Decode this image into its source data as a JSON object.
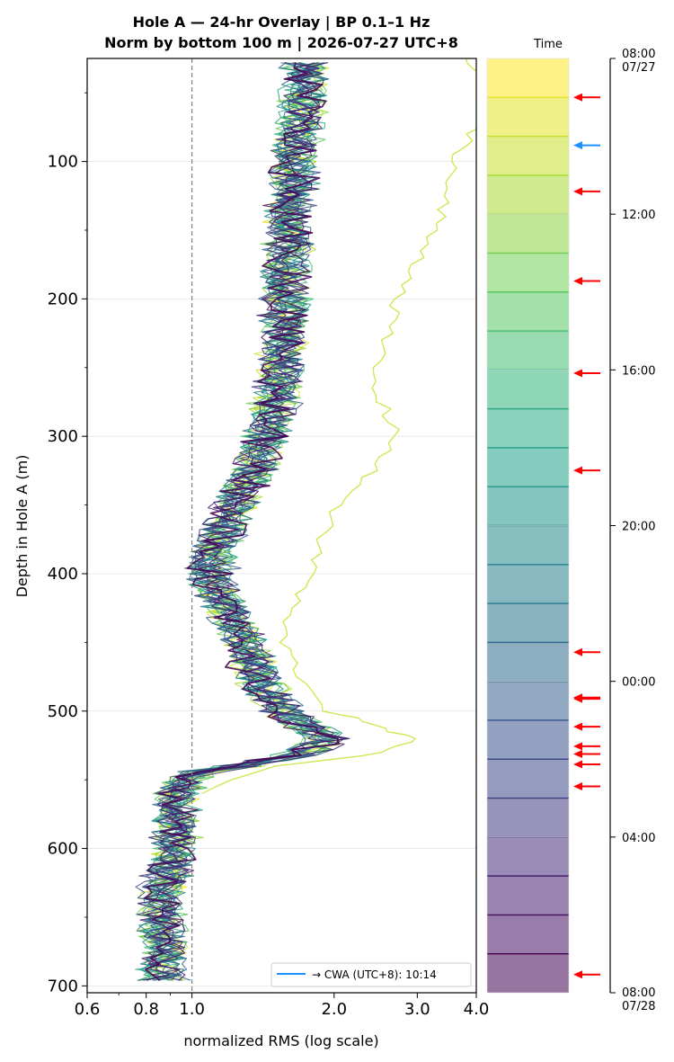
{
  "chart_data": {
    "type": "line",
    "title": "Hole A — 24-hr Overlay  |  BP 0.1–1 Hz",
    "subtitle": "Norm by bottom 100 m  |  2026-07-27 UTC+8",
    "xlabel": "normalized RMS  (log scale)",
    "ylabel": "Depth in Hole A (m)",
    "xscale": "log",
    "xlim": [
      0.6,
      4.0
    ],
    "ylim": [
      705,
      25
    ],
    "xticks": [
      0.6,
      0.8,
      1.0,
      2.0,
      3.0,
      4.0
    ],
    "xtick_labels": [
      "0.6",
      "0.8",
      "1.0",
      "2.0",
      "3.0",
      "4.0"
    ],
    "yticks": [
      100,
      200,
      300,
      400,
      500,
      600,
      700
    ],
    "ytick_labels": [
      "100",
      "200",
      "300",
      "400",
      "500",
      "600",
      "700"
    ],
    "reference_line_x": 1.0,
    "grid": "horizontal",
    "legend": {
      "position": "bottom-right",
      "entries": [
        {
          "label": "→ CWA (UTC+8): 10:14",
          "color": "#1e90ff"
        }
      ]
    },
    "colormap": "viridis",
    "baseline_profile": {
      "depth": [
        25,
        50,
        100,
        150,
        200,
        250,
        300,
        340,
        380,
        400,
        420,
        450,
        480,
        500,
        510,
        520,
        530,
        545,
        560,
        600,
        640,
        680,
        695
      ],
      "value": [
        1.75,
        1.72,
        1.65,
        1.6,
        1.58,
        1.55,
        1.45,
        1.28,
        1.12,
        1.1,
        1.15,
        1.3,
        1.38,
        1.55,
        1.7,
        1.95,
        1.75,
        1.0,
        0.93,
        0.92,
        0.85,
        0.88,
        0.86
      ]
    },
    "highlighted_series": {
      "name": "",
      "color": "#cce64a",
      "depth": [
        25,
        40,
        60,
        80,
        100,
        120,
        140,
        160,
        180,
        200,
        220,
        240,
        260,
        280,
        300,
        320,
        340,
        360,
        380,
        400,
        420,
        440,
        460,
        480,
        500,
        510,
        520,
        530,
        540,
        560
      ],
      "value": [
        3.8,
        4.05,
        4.2,
        3.95,
        3.6,
        3.45,
        3.35,
        3.15,
        2.95,
        2.75,
        2.6,
        2.5,
        2.4,
        2.55,
        2.75,
        2.45,
        2.2,
        1.95,
        1.85,
        1.8,
        1.65,
        1.55,
        1.6,
        1.75,
        1.95,
        2.4,
        2.9,
        2.6,
        1.45,
        1.05
      ]
    },
    "time_colorbar": {
      "label": "Time",
      "start": "08:00\n07/27",
      "end": "08:00\n07/28",
      "bands": 24,
      "ticks": [
        "08:00\n07/27",
        "12:00",
        "16:00",
        "20:00",
        "00:00",
        "04:00",
        "08:00\n07/28"
      ],
      "event_markers": [
        {
          "time": "09:00",
          "color": "#ff0000"
        },
        {
          "time": "10:14",
          "color": "#1e90ff"
        },
        {
          "time": "11:25",
          "color": "#ff0000"
        },
        {
          "time": "13:43",
          "color": "#ff0000"
        },
        {
          "time": "16:05",
          "color": "#ff0000"
        },
        {
          "time": "18:35",
          "color": "#ff0000"
        },
        {
          "time": "23:15",
          "color": "#ff0000"
        },
        {
          "time": "00:25",
          "color": "#ff0000"
        },
        {
          "time": "00:27",
          "color": "#ff0000"
        },
        {
          "time": "01:10",
          "color": "#ff0000"
        },
        {
          "time": "01:40",
          "color": "#ff0000"
        },
        {
          "time": "01:52",
          "color": "#ff0000"
        },
        {
          "time": "02:08",
          "color": "#ff0000"
        },
        {
          "time": "02:42",
          "color": "#ff0000"
        },
        {
          "time": "07:32",
          "color": "#ff0000"
        }
      ]
    }
  }
}
